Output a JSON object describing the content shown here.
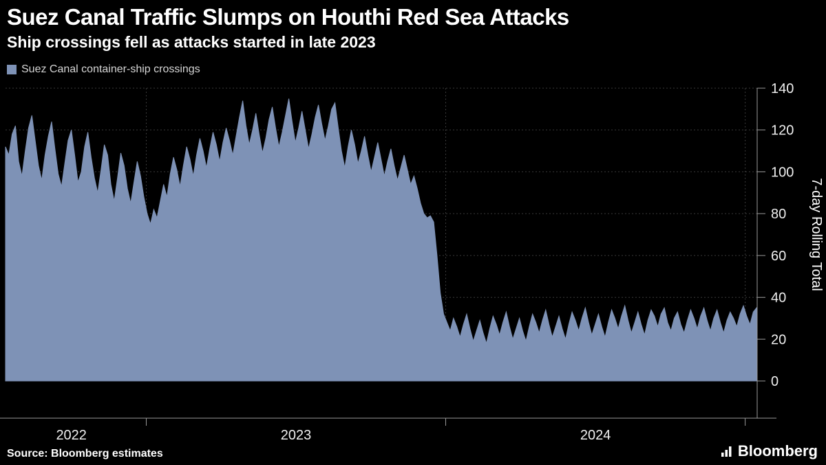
{
  "header": {
    "title": "Suez Canal Traffic Slumps on Houthi Red Sea Attacks",
    "subtitle": "Ship crossings fell as attacks started in late 2023"
  },
  "legend": {
    "label": "Suez Canal container-ship crossings"
  },
  "footer": {
    "source": "Source: Bloomberg estimates",
    "brand": "Bloomberg"
  },
  "colors": {
    "background": "#000000",
    "series_fill": "#7e92b6",
    "grid": "#3a3a3a",
    "axis": "#9a9a9a",
    "tick_text": "#f0f0f0",
    "title_text": "#ffffff"
  },
  "chart_data": {
    "type": "area",
    "title": "Suez Canal Traffic Slumps on Houthi Red Sea Attacks",
    "subtitle": "Ship crossings fell as attacks started in late 2023",
    "xlabel": "",
    "ylabel_right": "7-day Rolling Total",
    "xlim": [
      2022.53,
      2025.04
    ],
    "ylim": [
      0,
      140
    ],
    "y_ticks": [
      0,
      20,
      40,
      60,
      80,
      100,
      120,
      140
    ],
    "x_ticks": [
      2023,
      2024,
      2025
    ],
    "x_tick_labels": [
      {
        "pos": 2022.75,
        "label": "2022"
      },
      {
        "pos": 2023.5,
        "label": "2023"
      },
      {
        "pos": 2024.5,
        "label": "2024"
      }
    ],
    "grid": "dashed horizontal and vertical",
    "legend_position": "top-left",
    "series": [
      {
        "name": "Suez Canal container-ship crossings",
        "color": "#7e92b6",
        "x_unit": "decimal-year",
        "x_start": 2022.53,
        "x_step": 0.011,
        "values": [
          112,
          108,
          118,
          122,
          105,
          98,
          110,
          121,
          127,
          115,
          103,
          96,
          108,
          117,
          124,
          111,
          99,
          93,
          104,
          115,
          120,
          108,
          95,
          100,
          112,
          119,
          107,
          97,
          90,
          101,
          113,
          108,
          94,
          86,
          97,
          109,
          103,
          92,
          85,
          95,
          105,
          98,
          88,
          80,
          75,
          82,
          78,
          86,
          94,
          88,
          99,
          107,
          101,
          93,
          103,
          112,
          106,
          98,
          108,
          116,
          110,
          102,
          111,
          119,
          113,
          105,
          114,
          121,
          115,
          108,
          117,
          126,
          134,
          122,
          113,
          120,
          128,
          118,
          109,
          116,
          125,
          131,
          121,
          112,
          119,
          127,
          135,
          124,
          114,
          121,
          129,
          120,
          111,
          118,
          126,
          132,
          123,
          115,
          122,
          130,
          133,
          121,
          110,
          102,
          112,
          120,
          113,
          104,
          110,
          117,
          108,
          100,
          107,
          114,
          106,
          98,
          105,
          111,
          103,
          96,
          102,
          108,
          101,
          94,
          98,
          92,
          85,
          80,
          78,
          79,
          76,
          60,
          42,
          32,
          28,
          24,
          30,
          26,
          21,
          27,
          32,
          25,
          19,
          24,
          29,
          23,
          18,
          25,
          31,
          27,
          22,
          28,
          33,
          26,
          20,
          25,
          30,
          24,
          19,
          26,
          32,
          28,
          23,
          29,
          34,
          27,
          21,
          26,
          31,
          25,
          20,
          27,
          33,
          29,
          24,
          30,
          35,
          28,
          22,
          27,
          32,
          26,
          21,
          28,
          34,
          30,
          25,
          31,
          36,
          29,
          23,
          28,
          33,
          27,
          22,
          29,
          34,
          31,
          26,
          32,
          35,
          28,
          24,
          30,
          33,
          27,
          23,
          29,
          34,
          30,
          25,
          31,
          35,
          29,
          24,
          30,
          34,
          28,
          23,
          29,
          33,
          30,
          26,
          32,
          36,
          31,
          27,
          33,
          35
        ]
      }
    ]
  }
}
